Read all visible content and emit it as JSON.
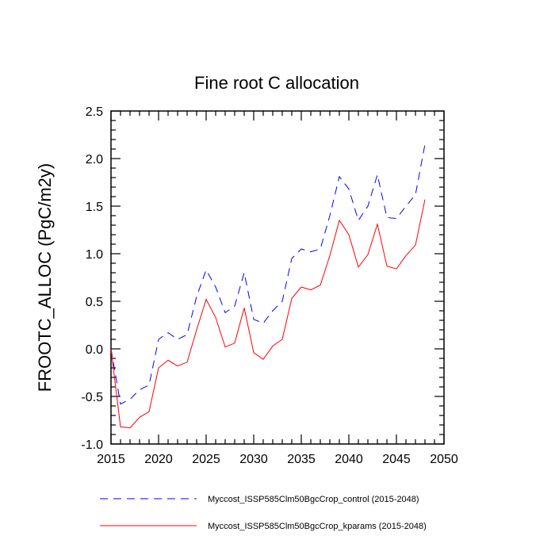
{
  "chart_data": {
    "type": "line",
    "title": "Fine root C allocation",
    "xlabel": "",
    "ylabel": "FROOTC_ALLOC  (PgC/m2y)",
    "xlim": [
      2015,
      2050
    ],
    "ylim": [
      -1.0,
      2.5
    ],
    "xticks": [
      2015,
      2020,
      2025,
      2030,
      2035,
      2040,
      2045,
      2050
    ],
    "yticks": [
      "-1.0",
      "-0.5",
      "0.0",
      "0.5",
      "1.0",
      "1.5",
      "2.0",
      "2.5"
    ],
    "x": [
      2015,
      2016,
      2017,
      2018,
      2019,
      2020,
      2021,
      2022,
      2023,
      2024,
      2025,
      2026,
      2027,
      2028,
      2029,
      2030,
      2031,
      2032,
      2033,
      2034,
      2035,
      2036,
      2037,
      2038,
      2039,
      2040,
      2041,
      2042,
      2043,
      2044,
      2045,
      2046,
      2047,
      2048
    ],
    "series": [
      {
        "name": "Myccost_ISSP585Clm50BgcCrop_control (2015-2048)",
        "color": "#0000ff",
        "dash": "dashed",
        "values": [
          0.0,
          -0.58,
          -0.53,
          -0.43,
          -0.38,
          0.1,
          0.17,
          0.1,
          0.15,
          0.55,
          0.83,
          0.65,
          0.38,
          0.45,
          0.8,
          0.31,
          0.27,
          0.4,
          0.5,
          0.95,
          1.05,
          1.02,
          1.05,
          1.4,
          1.81,
          1.68,
          1.35,
          1.5,
          1.83,
          1.38,
          1.37,
          1.5,
          1.62,
          2.15
        ]
      },
      {
        "name": "Myccost_ISSP585Clm50BgcCrop_kparams (2015-2048)",
        "color": "#ff0000",
        "dash": "solid",
        "values": [
          0.0,
          -0.82,
          -0.83,
          -0.72,
          -0.66,
          -0.2,
          -0.12,
          -0.18,
          -0.14,
          0.2,
          0.52,
          0.33,
          0.02,
          0.06,
          0.43,
          -0.04,
          -0.11,
          0.03,
          0.1,
          0.53,
          0.65,
          0.62,
          0.67,
          0.98,
          1.35,
          1.2,
          0.86,
          0.99,
          1.31,
          0.87,
          0.84,
          0.98,
          1.09,
          1.57
        ]
      }
    ],
    "legend_position": "bottom"
  }
}
